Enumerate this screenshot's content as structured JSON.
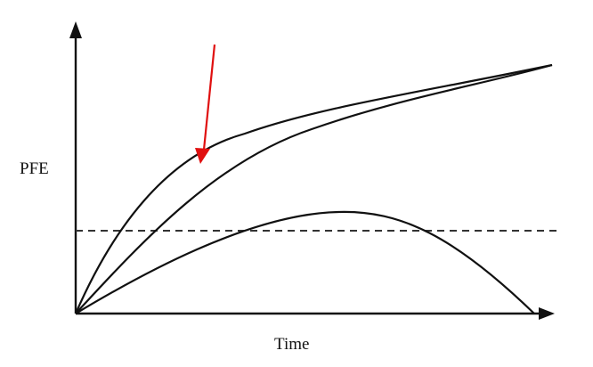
{
  "labels": {
    "y_axis": "PFE",
    "x_axis": "Time"
  },
  "colors": {
    "axis": "#111111",
    "curve": "#111111",
    "threshold": "#333333",
    "arrow": "#e01010",
    "background": "#ffffff"
  }
}
